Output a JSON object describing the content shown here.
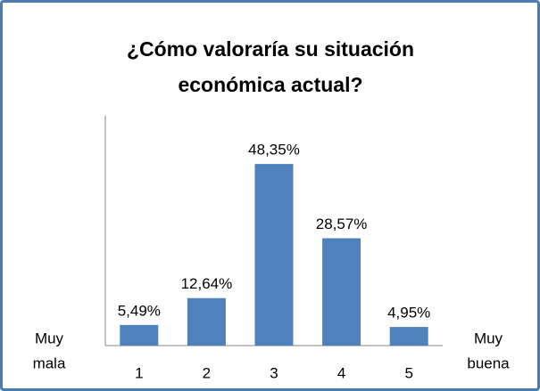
{
  "chart_data": {
    "type": "bar",
    "title": "¿Cómo valoraría su situación económica actual?",
    "categories": [
      "1",
      "2",
      "3",
      "4",
      "5"
    ],
    "values": [
      5.49,
      12.64,
      48.35,
      28.57,
      4.95
    ],
    "value_labels": [
      "5,49%",
      "12,64%",
      "48,35%",
      "28,57%",
      "4,95%"
    ],
    "color": "#4f81bd",
    "ylim": [
      0,
      60
    ],
    "grid": false,
    "left_label": [
      "Muy",
      "mala"
    ],
    "right_label": [
      "Muy",
      "buena"
    ]
  }
}
